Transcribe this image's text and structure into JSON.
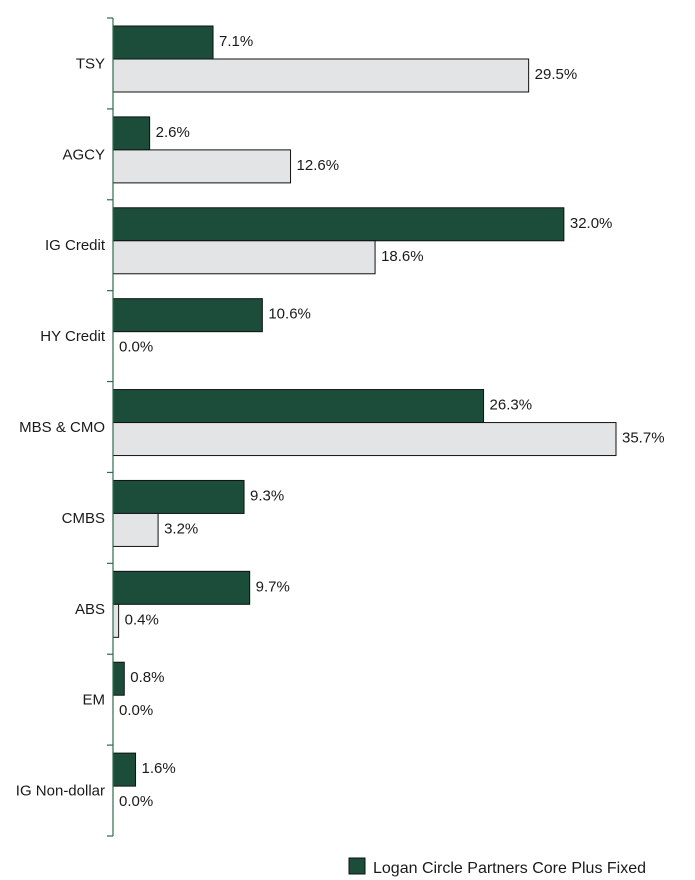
{
  "chart_data": {
    "type": "bar",
    "orientation": "horizontal",
    "categories": [
      "TSY",
      "AGCY",
      "IG Credit",
      "HY Credit",
      "MBS & CMO",
      "CMBS",
      "ABS",
      "EM",
      "IG Non-dollar"
    ],
    "series": [
      {
        "name": "Logan Circle Partners Core Plus Fixed",
        "values": [
          7.1,
          2.6,
          32.0,
          10.6,
          26.3,
          9.3,
          9.7,
          0.8,
          1.6
        ],
        "labels": [
          "7.1%",
          "2.6%",
          "32.0%",
          "10.6%",
          "26.3%",
          "9.3%",
          "9.7%",
          "0.8%",
          "1.6%"
        ],
        "color": "#1b4d3a"
      },
      {
        "values": [
          29.5,
          12.6,
          18.6,
          0.0,
          35.7,
          3.2,
          0.4,
          0.0,
          0.0
        ],
        "labels": [
          "29.5%",
          "12.6%",
          "18.6%",
          "0.0%",
          "35.7%",
          "3.2%",
          "0.4%",
          "0.0%",
          "0.0%"
        ],
        "color": "#e3e4e6"
      }
    ],
    "xlim": [
      0,
      35.7
    ],
    "axis_color": "#2e6b52",
    "legend_position": "bottom-right"
  }
}
